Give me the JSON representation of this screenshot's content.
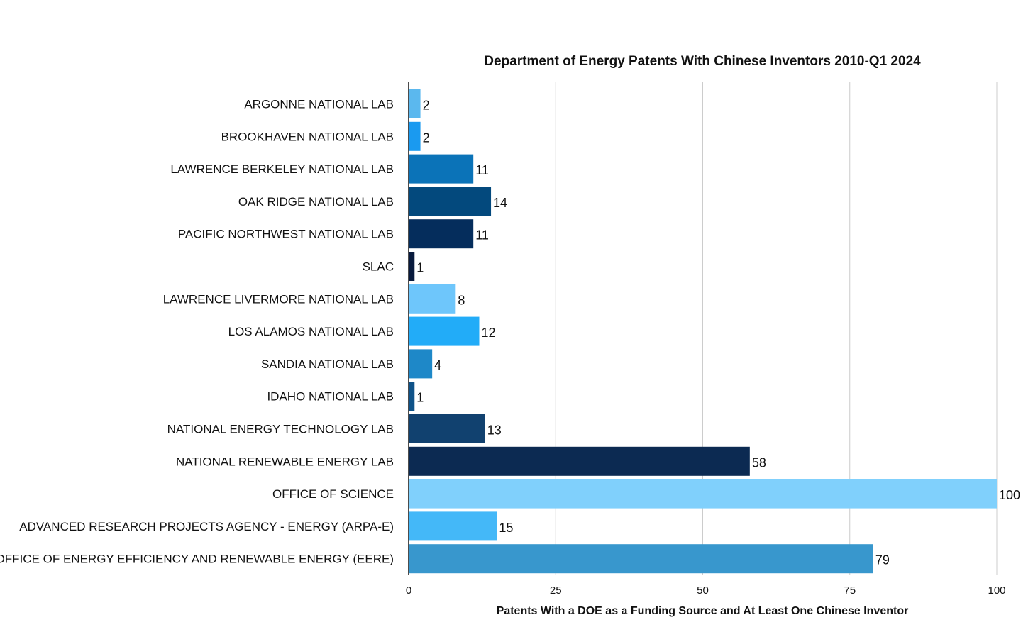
{
  "chart_data": {
    "type": "bar",
    "orientation": "horizontal",
    "title": "Department of Energy Patents With Chinese Inventors 2010-Q1 2024",
    "xlabel": "Patents With a DOE as a Funding Source and At Least One Chinese Inventor",
    "ylabel": "",
    "xlim": [
      0,
      100
    ],
    "xticks": [
      0,
      25,
      50,
      75,
      100
    ],
    "grid": true,
    "legend": "none",
    "categories": [
      "ARGONNE NATIONAL LAB",
      "BROOKHAVEN NATIONAL LAB",
      "LAWRENCE BERKELEY NATIONAL LAB",
      "OAK RIDGE NATIONAL LAB",
      "PACIFIC NORTHWEST NATIONAL LAB",
      "SLAC",
      "LAWRENCE LIVERMORE NATIONAL LAB",
      "LOS ALAMOS NATIONAL LAB",
      "SANDIA NATIONAL LAB",
      "IDAHO NATIONAL LAB",
      "NATIONAL ENERGY TECHNOLOGY LAB",
      "NATIONAL RENEWABLE ENERGY LAB",
      "OFFICE OF SCIENCE",
      "ADVANCED RESEARCH PROJECTS AGENCY - ENERGY (ARPA-E)",
      "OFFICE OF ENERGY EFFICIENCY AND RENEWABLE ENERGY (EERE)"
    ],
    "values": [
      2,
      2,
      11,
      14,
      11,
      1,
      8,
      12,
      4,
      1,
      13,
      58,
      100,
      15,
      79
    ],
    "colors": [
      "#5bb8ee",
      "#1a9af0",
      "#0b73b8",
      "#03497d",
      "#052d5c",
      "#081a3d",
      "#6ec6fb",
      "#22acf8",
      "#1e88c8",
      "#0f5288",
      "#11416f",
      "#0c2a52",
      "#80d0fc",
      "#44b8f8",
      "#3897cd"
    ]
  }
}
